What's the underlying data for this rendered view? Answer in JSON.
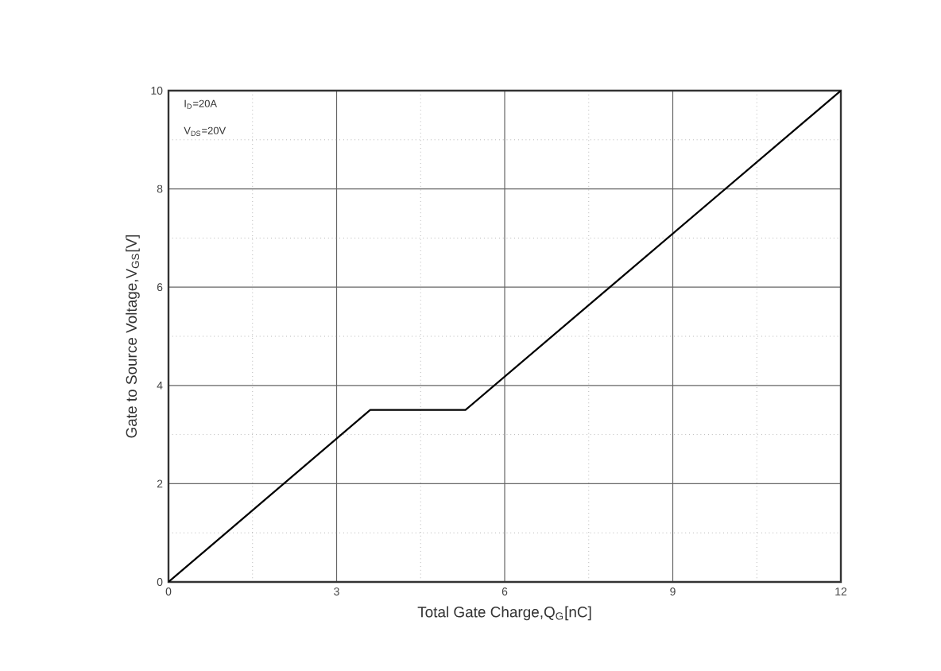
{
  "chart_data": {
    "type": "line",
    "xlabel": "Total  Gate Charge,Q$_{G}$[nC]",
    "ylabel": "Gate to Source Voltage,V$_{GS}$[V]",
    "annotations": [
      "I$_{D}$=20A",
      "V$_{DS}$=20V"
    ],
    "x": [
      0,
      3.6,
      5.3,
      12
    ],
    "series": [
      {
        "color": "#000000",
        "values": [
          0,
          3.5,
          3.5,
          10
        ]
      }
    ],
    "xlim": [
      0,
      12
    ],
    "ylim": [
      0,
      10
    ],
    "xticks": [
      0,
      3,
      6,
      9,
      12
    ],
    "yticks": [
      0,
      2,
      4,
      6,
      8,
      10
    ],
    "grid": true,
    "line_style": "solid",
    "marker": "none"
  }
}
